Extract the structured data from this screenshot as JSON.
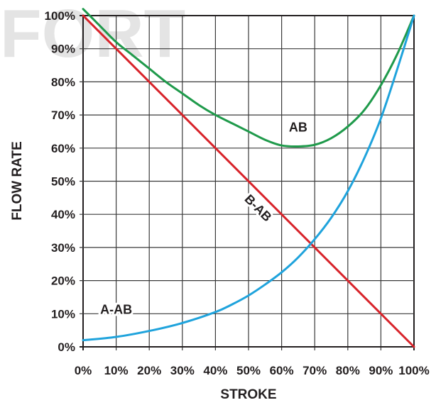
{
  "chart_data": {
    "type": "line",
    "watermark": "FORT",
    "xlabel": "STROKE",
    "ylabel": "FLOW RATE",
    "x_ticks": [
      "0%",
      "10%",
      "20%",
      "30%",
      "40%",
      "50%",
      "60%",
      "70%",
      "80%",
      "90%",
      "100%"
    ],
    "y_ticks": [
      "0%",
      "10%",
      "20%",
      "30%",
      "40%",
      "50%",
      "60%",
      "70%",
      "80%",
      "90%",
      "100%"
    ],
    "xlim": [
      0,
      100
    ],
    "ylim": [
      0,
      100
    ],
    "grid": true,
    "series": [
      {
        "name": "AB",
        "color": "#1f9a4b",
        "x": [
          0,
          5,
          10,
          15,
          20,
          25,
          30,
          35,
          40,
          45,
          50,
          55,
          60,
          65,
          70,
          75,
          80,
          85,
          90,
          95,
          100
        ],
        "y": [
          102,
          97,
          92,
          88,
          84,
          80,
          76.5,
          73,
          70,
          67.5,
          65,
          62.5,
          60.8,
          60.5,
          61,
          63,
          66.5,
          71.5,
          79,
          88.5,
          100
        ]
      },
      {
        "name": "B-AB",
        "color": "#d8232a",
        "x": [
          0,
          100
        ],
        "y": [
          100,
          0
        ]
      },
      {
        "name": "A-AB",
        "color": "#1fa3dc",
        "x": [
          0,
          10,
          20,
          30,
          40,
          45,
          50,
          55,
          60,
          65,
          70,
          75,
          80,
          85,
          90,
          95,
          100
        ],
        "y": [
          2,
          3,
          4.8,
          7.2,
          10.5,
          12.8,
          15.5,
          18.8,
          22.5,
          27,
          32.5,
          39,
          47,
          57,
          69,
          84,
          100
        ]
      }
    ],
    "annotations": [
      {
        "text": "AB",
        "x": 65,
        "y": 65
      },
      {
        "text": "B-AB",
        "x": 52,
        "y": 41
      },
      {
        "text": "A-AB",
        "x": 10,
        "y": 10
      }
    ]
  }
}
